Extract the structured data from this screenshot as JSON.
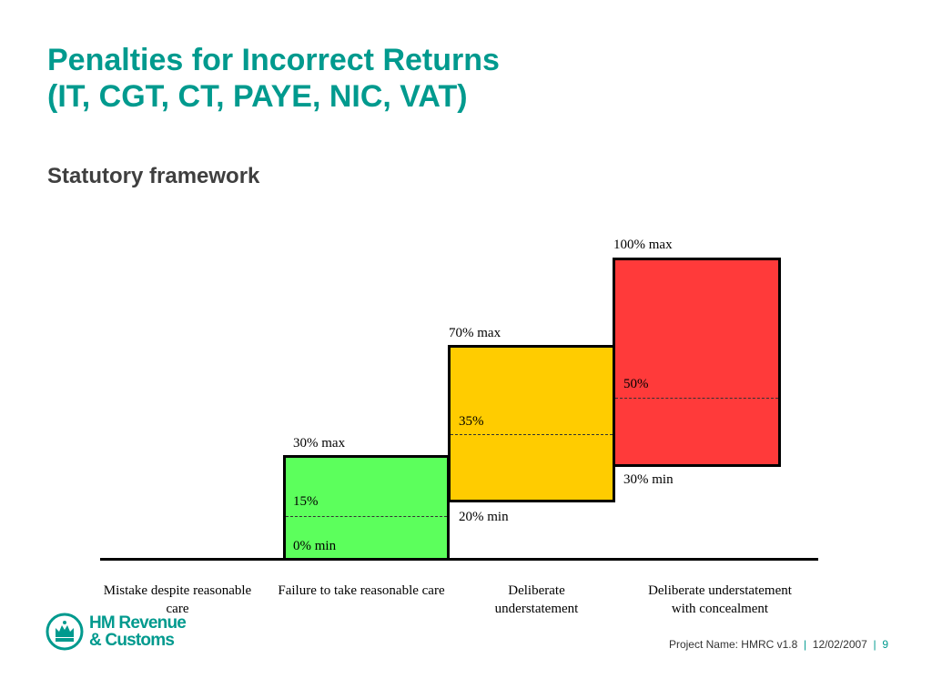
{
  "title": {
    "line1": "Penalties for Incorrect Returns",
    "line2": "(IT, CGT, CT, PAYE, NIC, VAT)"
  },
  "subtitle": "Statutory framework",
  "colors": {
    "title": "#009a8e",
    "green": "#5cff5c",
    "amber": "#ffcc00",
    "red": "#ff3a3a"
  },
  "bands": [
    {
      "max_label": "30% max",
      "mid_label": "15%",
      "min_label": "0% min",
      "color": "#5cff5c"
    },
    {
      "max_label": "70% max",
      "mid_label": "35%",
      "min_label": "20% min",
      "color": "#ffcc00"
    },
    {
      "max_label": "100% max",
      "mid_label": "50%",
      "min_label": "30% min",
      "color": "#ff3a3a"
    }
  ],
  "categories": [
    "Mistake despite reasonable care",
    "Failure to take reasonable care",
    "Deliberate understatement",
    "Deliberate understatement with concealment"
  ],
  "logo": {
    "line1": "HM Revenue",
    "line2": "& Customs",
    "icon": "crown-icon"
  },
  "footer": {
    "project": "Project Name: HMRC v1.8",
    "separator": "|",
    "date": "12/02/2007",
    "page": "9"
  }
}
